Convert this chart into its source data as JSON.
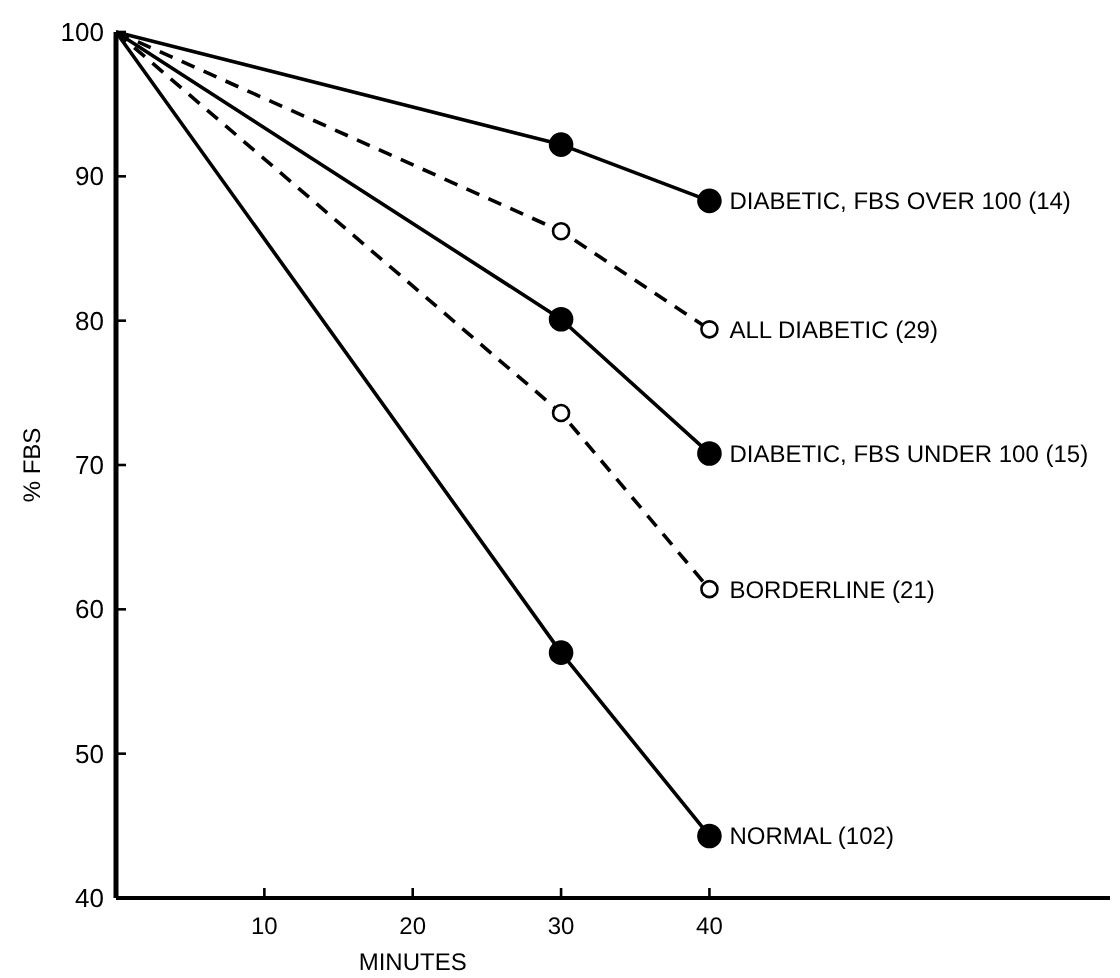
{
  "chart_data": {
    "type": "line",
    "xlabel": "MINUTES",
    "ylabel": "% FBS",
    "x": [
      0,
      30,
      40
    ],
    "xlim": [
      0,
      67
    ],
    "ylim": [
      40,
      100
    ],
    "xticks": [
      10,
      20,
      30,
      40
    ],
    "yticks": [
      40,
      50,
      60,
      70,
      80,
      90,
      100
    ],
    "grid": false,
    "legend": false,
    "marker": "circle",
    "series": [
      {
        "name": "DIABETIC, FBS OVER 100 (14)",
        "color": "#000000",
        "line_style": "solid",
        "values": [
          100,
          92.2,
          88.3
        ]
      },
      {
        "name": "ALL DIABETIC (29)",
        "color": "#000000",
        "line_style": "dashed",
        "values": [
          100,
          86.2,
          79.4
        ]
      },
      {
        "name": "DIABETIC, FBS UNDER 100 (15)",
        "color": "#000000",
        "line_style": "solid",
        "values": [
          100,
          80.1,
          70.8
        ]
      },
      {
        "name": "BORDERLINE (21)",
        "color": "#000000",
        "line_style": "dashed",
        "values": [
          100,
          73.6,
          61.4
        ]
      },
      {
        "name": "NORMAL (102)",
        "color": "#000000",
        "line_style": "solid",
        "values": [
          100,
          57,
          44.3
        ]
      }
    ]
  }
}
